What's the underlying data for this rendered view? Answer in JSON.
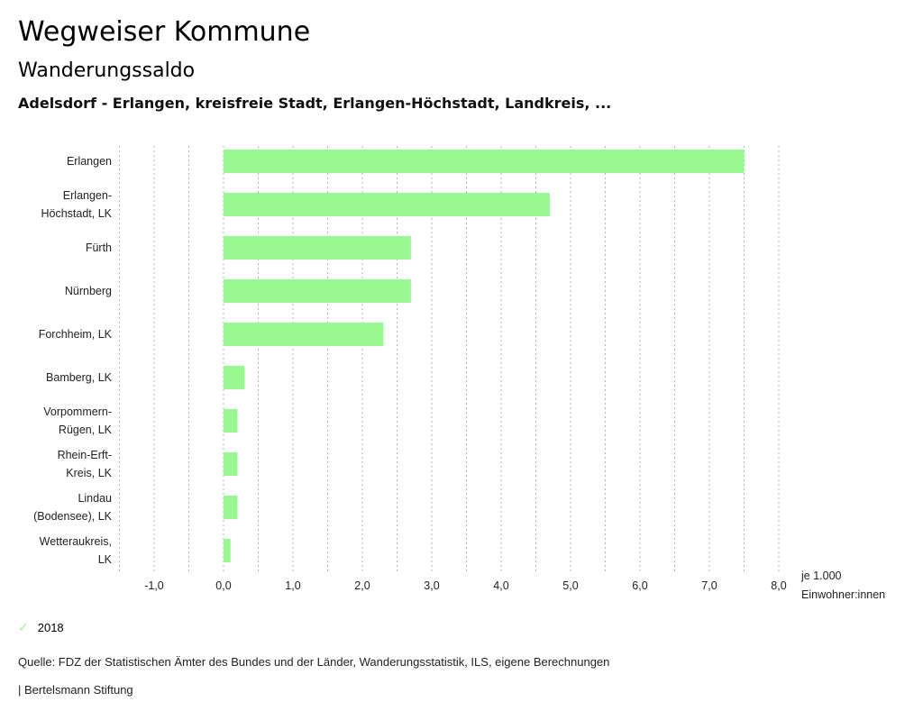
{
  "header": {
    "title": "Wegweiser Kommune",
    "subtitle": "Wanderungssaldo",
    "context": "Adelsdorf - Erlangen, kreisfreie Stadt, Erlangen-Höchstadt, Landkreis, ..."
  },
  "chart_data": {
    "type": "bar",
    "orientation": "horizontal",
    "title": "Wanderungssaldo",
    "categories": [
      [
        "Erlangen"
      ],
      [
        "Erlangen-",
        "Höchstadt, LK"
      ],
      [
        "Fürth"
      ],
      [
        "Nürnberg"
      ],
      [
        "Forchheim, LK"
      ],
      [
        "Bamberg, LK"
      ],
      [
        "Vorpommern-",
        "Rügen, LK"
      ],
      [
        "Rhein-Erft-",
        "Kreis, LK"
      ],
      [
        "Lindau",
        "(Bodensee), LK"
      ],
      [
        "Wetteraukreis,",
        "LK"
      ]
    ],
    "series": [
      {
        "name": "2018",
        "color": "#9af893",
        "values": [
          7.5,
          4.7,
          2.7,
          2.7,
          2.3,
          0.3,
          0.2,
          0.2,
          0.2,
          0.1
        ]
      }
    ],
    "xlim": [
      -1.5,
      8.0
    ],
    "xticks": [
      -1.0,
      0.0,
      1.0,
      2.0,
      3.0,
      4.0,
      5.0,
      6.0,
      7.0,
      8.0
    ],
    "xtick_labels": [
      "-1,0",
      "0,0",
      "1,0",
      "2,0",
      "3,0",
      "4,0",
      "5,0",
      "6,0",
      "7,0",
      "8,0"
    ],
    "gridlines_step": 0.5,
    "grid": true,
    "xlabel": [
      "je 1.000",
      "Einwohner:innen"
    ],
    "ylabel": "",
    "legend": {
      "position": "bottom-left",
      "entries": [
        "2018"
      ]
    }
  },
  "legend": {
    "label": "2018",
    "icon": "check-icon"
  },
  "footer": {
    "source": "Quelle: FDZ der Statistischen Ämter des Bundes und der Länder, Wanderungsstatistik, ILS, eigene Berechnungen",
    "credit": "| Bertelsmann Stiftung"
  }
}
